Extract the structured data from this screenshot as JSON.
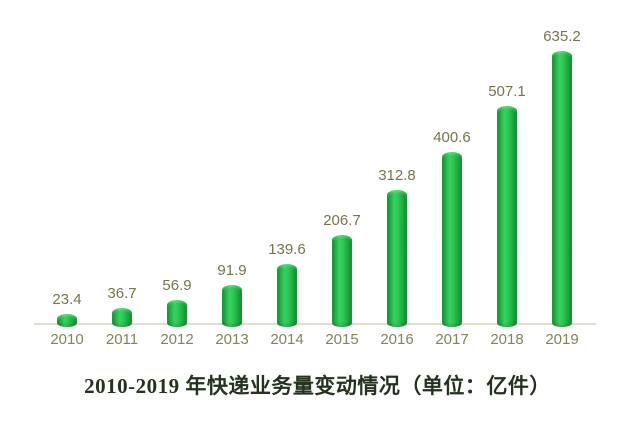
{
  "chart_data": {
    "type": "bar",
    "title": "2010-2019 年快递业务量变动情况（单位：亿件）",
    "unit": "亿件",
    "categories": [
      "2010",
      "2011",
      "2012",
      "2013",
      "2014",
      "2015",
      "2016",
      "2017",
      "2018",
      "2019"
    ],
    "values": [
      23.4,
      36.7,
      56.9,
      91.9,
      139.6,
      206.7,
      312.8,
      400.6,
      507.1,
      635.2
    ],
    "xlabel": "",
    "ylabel": "",
    "ylim": [
      0,
      700
    ],
    "grid": false,
    "legend_position": "none",
    "data_labels_shown": true,
    "bar_style": "3d-cylinder"
  },
  "colors": {
    "bar_main": "#22bc48",
    "bar_highlight": "#3ad162",
    "bar_edge_dark": "#0f9530",
    "value_label": "#77744c",
    "axis_tick_label": "#85835a",
    "axis_line": "#dcdfd2",
    "title": "#24321f",
    "background": "#ffffff"
  }
}
